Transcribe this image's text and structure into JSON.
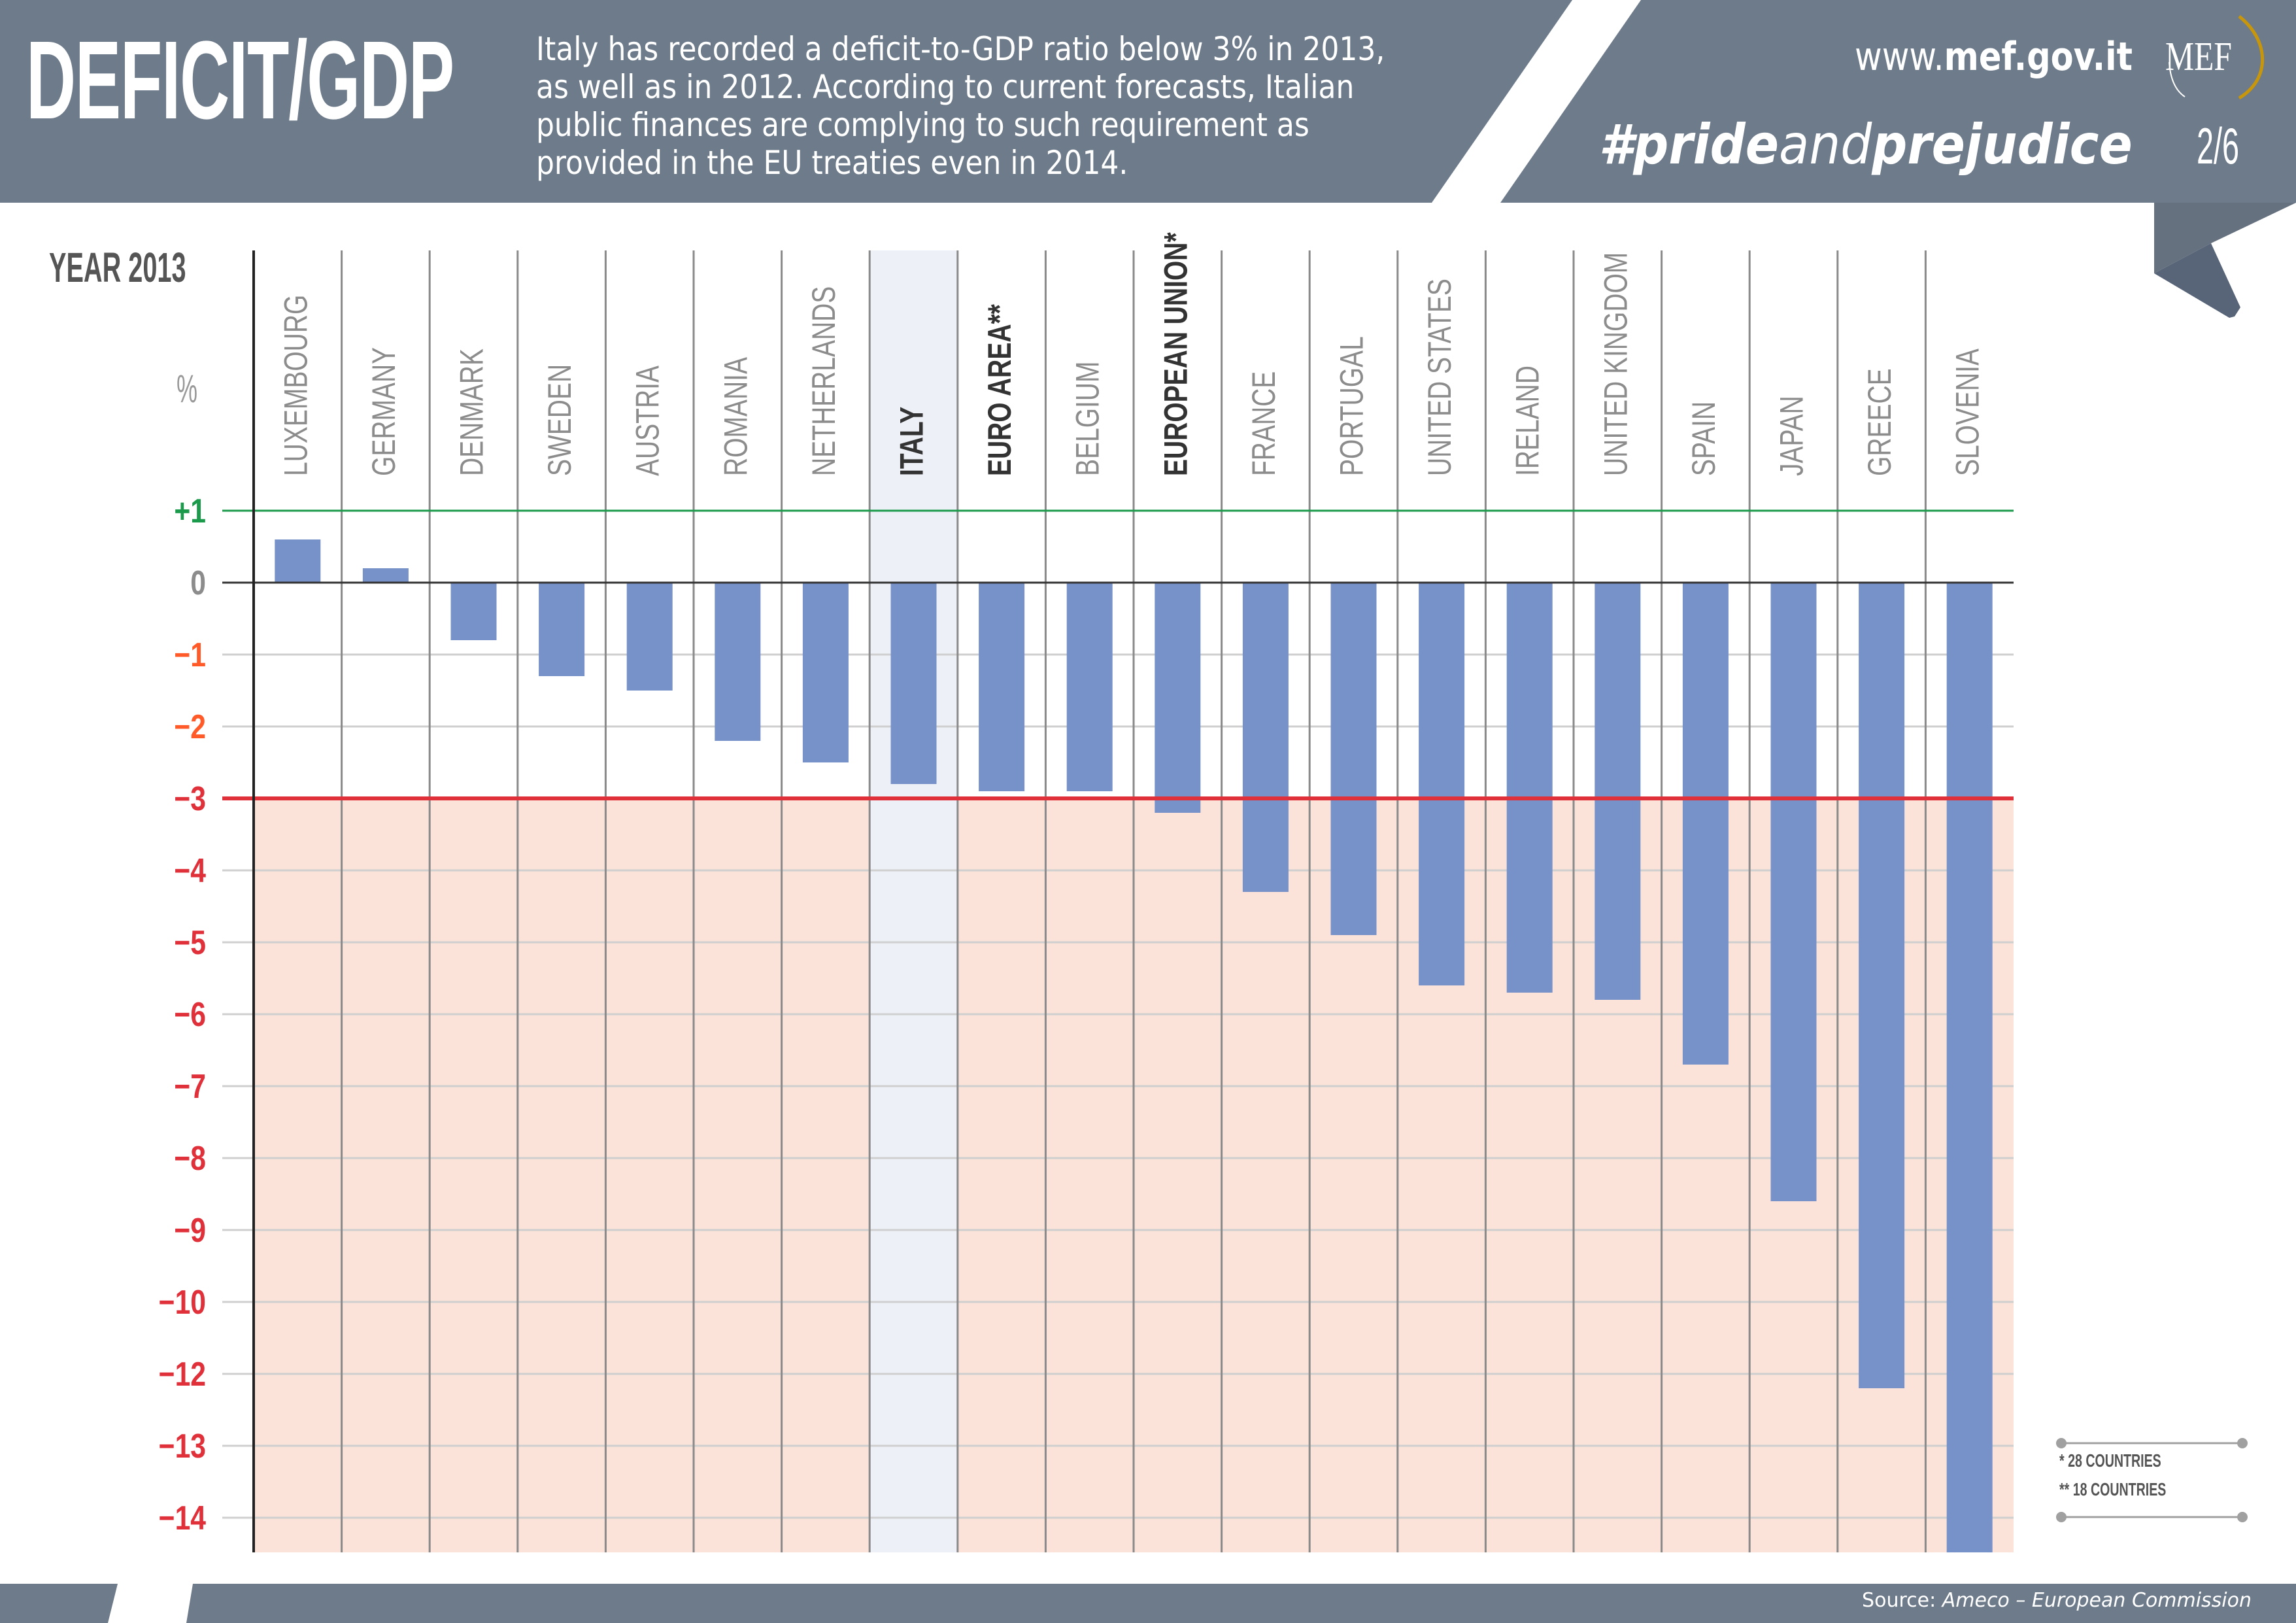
{
  "header": {
    "title": "DEFICIT/GDP",
    "description": "Italy has recorded a deficit-to-GDP ratio below 3% in 2013, as well as in 2012. According to current forecasts, Italian public finances are complying to such requirement as provided in the EU treaties even in 2014.",
    "description_lines": [
      "Italy has recorded a deficit-to-GDP ratio below 3% in 2013,",
      "as well as in 2012. According to current forecasts, Italian",
      "public finances are complying to such requirement as",
      "provided in the EU treaties even in 2014."
    ],
    "site_prefix": "www.",
    "site_domain": "mef.gov.it",
    "logo_text": "MEF",
    "hashtag_part1": "#pride",
    "hashtag_part2": "and",
    "hashtag_part3": "prejudice",
    "page_indicator": "2/6"
  },
  "colors": {
    "header_bg": "#6e7b8b",
    "ribbon_dark": "#586478",
    "bar": "#7792c8",
    "danger_zone": "#fbe3da",
    "italy_highlight": "#eef0f8",
    "threshold_line": "#e0303a",
    "upper_line": "#1a9a4a",
    "tick_positive": "#1a9a4a",
    "tick_zero": "#8c8c8c",
    "tick_orange": "#ff5a28",
    "tick_red": "#e0303a",
    "logo_gold": "#c8960a"
  },
  "chart_data": {
    "type": "bar",
    "title": "YEAR 2013",
    "ylabel": "%",
    "xlabel": "",
    "ylim": [
      -14,
      1
    ],
    "yticks": [
      "+1",
      "0",
      "−1",
      "−2",
      "−3",
      "−4",
      "−5",
      "−6",
      "−7",
      "−8",
      "−9",
      "−10",
      "−12",
      "−13",
      "−14"
    ],
    "ytick_values": [
      1,
      0,
      -1,
      -2,
      -3,
      -4,
      -5,
      -6,
      -7,
      -8,
      -9,
      -10,
      -12,
      -13,
      -14
    ],
    "threshold": -3,
    "upper_reference": 1,
    "grid": true,
    "highlighted_category": "ITALY",
    "emphasized_categories": [
      "ITALY",
      "EURO AREA**",
      "EUROPEAN UNION*"
    ],
    "categories": [
      "LUXEMBOURG",
      "GERMANY",
      "DENMARK",
      "SWEDEN",
      "AUSTRIA",
      "ROMANIA",
      "NETHERLANDS",
      "ITALY",
      "EURO AREA**",
      "BELGIUM",
      "EUROPEAN UNION*",
      "FRANCE",
      "PORTUGAL",
      "UNITED STATES",
      "IRELAND",
      "UNITED KINGDOM",
      "SPAIN",
      "JAPAN",
      "GREECE",
      "SLOVENIA"
    ],
    "values": [
      0.6,
      0.2,
      -0.8,
      -1.3,
      -1.5,
      -2.2,
      -2.5,
      -2.8,
      -2.9,
      -2.9,
      -3.2,
      -4.3,
      -4.9,
      -5.6,
      -5.7,
      -5.8,
      -6.7,
      -8.6,
      -12.2,
      -14.7
    ]
  },
  "legend": {
    "notes": [
      "*   28 COUNTRIES",
      "** 18 COUNTRIES"
    ]
  },
  "footer": {
    "source_label": "Source: ",
    "source_value": "Ameco – European Commission"
  }
}
